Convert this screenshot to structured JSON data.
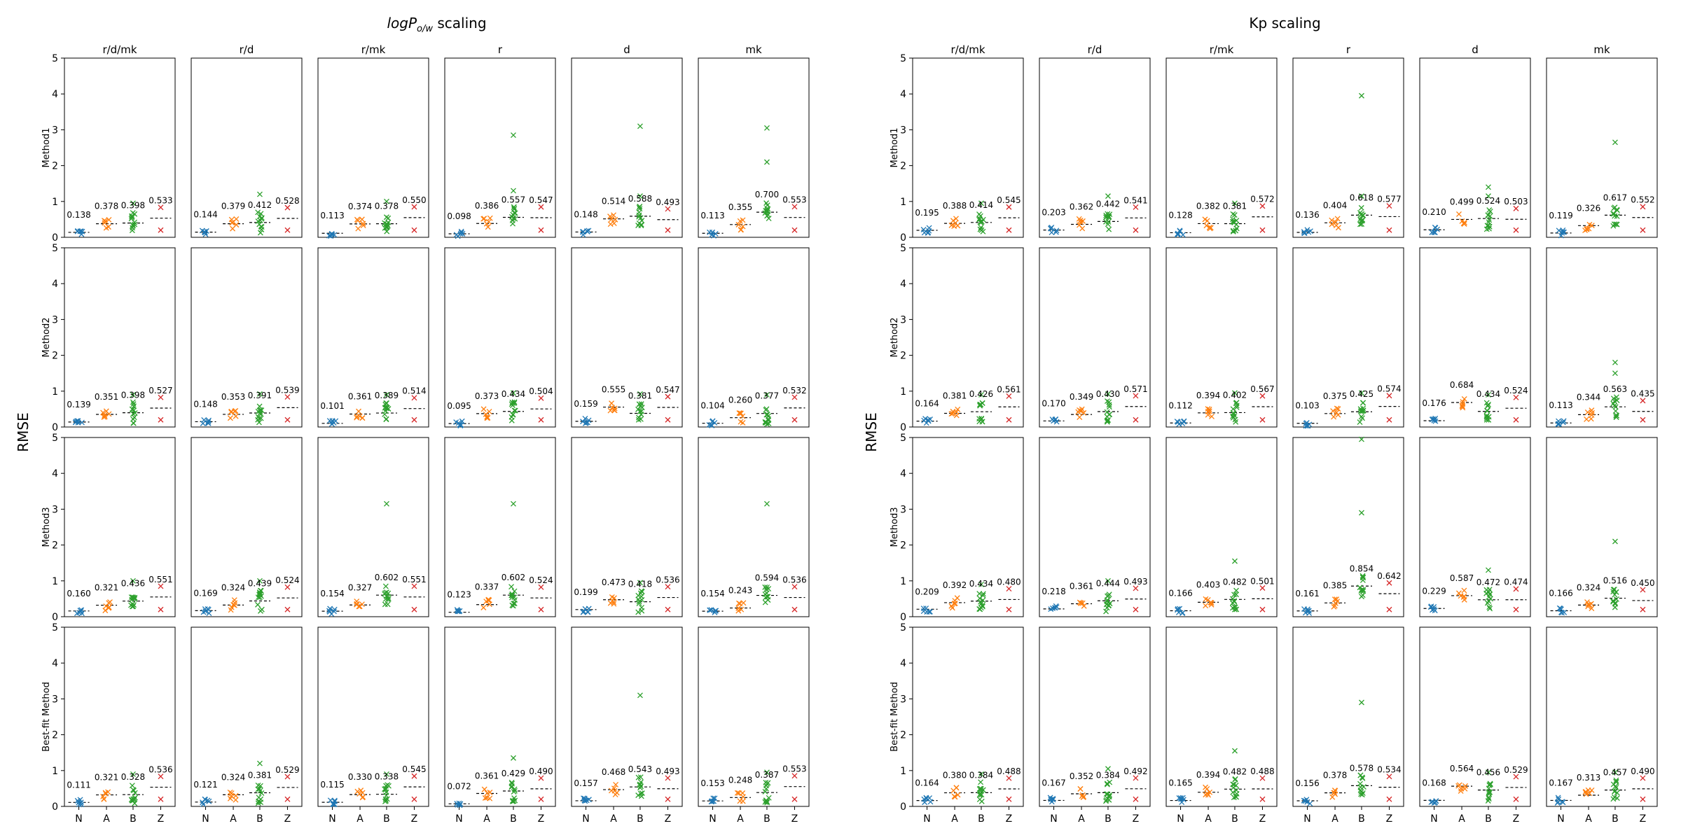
{
  "figure": {
    "panels": [
      {
        "title_pre": "logP",
        "title_sub": "o/w",
        "title_post": " scaling",
        "ylabel": "RMSE"
      },
      {
        "title_pre": "Kp scaling",
        "title_sub": "",
        "title_post": "",
        "ylabel": "RMSE"
      }
    ],
    "columns": [
      "r/d/mk",
      "r/d",
      "r/mk",
      "r",
      "d",
      "mk"
    ],
    "rows": [
      "Method1",
      "Method2",
      "Method3",
      "Best-fit Method"
    ],
    "categories": [
      "N",
      "A",
      "B",
      "Z"
    ],
    "yticks": [
      0,
      1,
      2,
      3,
      4,
      5
    ],
    "colors": {
      "N": "#1f77b4",
      "A": "#ff7f0e",
      "B": "#2ca02c",
      "Z": "#d62728"
    }
  },
  "chart_data": [
    {
      "type": "scatter",
      "title": "logPo/w scaling",
      "ylabel": "RMSE",
      "ylim": [
        0,
        5
      ],
      "yticks": [
        0,
        1,
        2,
        3,
        4,
        5
      ],
      "categories": [
        "N",
        "A",
        "B",
        "Z"
      ],
      "columns": [
        "r/d/mk",
        "r/d",
        "r/mk",
        "r",
        "d",
        "mk"
      ],
      "rows": [
        "Method1",
        "Method2",
        "Method3",
        "Best-fit Method"
      ],
      "mean_rmse": [
        [
          [
            "0.138",
            "0.378",
            "0.398",
            "0.533"
          ],
          [
            "0.144",
            "0.379",
            "0.412",
            "0.528"
          ],
          [
            "0.113",
            "0.374",
            "0.378",
            "0.550"
          ],
          [
            "0.098",
            "0.386",
            "0.557",
            "0.547"
          ],
          [
            "0.148",
            "0.514",
            "0.588",
            "0.493"
          ],
          [
            "0.113",
            "0.355",
            "0.700",
            "0.553"
          ]
        ],
        [
          [
            "0.139",
            "0.351",
            "0.398",
            "0.527"
          ],
          [
            "0.148",
            "0.353",
            "0.391",
            "0.539"
          ],
          [
            "0.101",
            "0.361",
            "0.389",
            "0.514"
          ],
          [
            "0.095",
            "0.373",
            "0.434",
            "0.504"
          ],
          [
            "0.159",
            "0.555",
            "0.381",
            "0.547"
          ],
          [
            "0.104",
            "0.260",
            "0.377",
            "0.532"
          ]
        ],
        [
          [
            "0.160",
            "0.321",
            "0.436",
            "0.551"
          ],
          [
            "0.169",
            "0.324",
            "0.439",
            "0.524"
          ],
          [
            "0.154",
            "0.327",
            "0.602",
            "0.551"
          ],
          [
            "0.123",
            "0.337",
            "0.602",
            "0.524"
          ],
          [
            "0.199",
            "0.473",
            "0.418",
            "0.536"
          ],
          [
            "0.154",
            "0.243",
            "0.594",
            "0.536"
          ]
        ],
        [
          [
            "0.111",
            "0.321",
            "0.328",
            "0.536"
          ],
          [
            "0.121",
            "0.324",
            "0.381",
            "0.529"
          ],
          [
            "0.115",
            "0.330",
            "0.338",
            "0.545"
          ],
          [
            "0.072",
            "0.361",
            "0.429",
            "0.490"
          ],
          [
            "0.157",
            "0.468",
            "0.543",
            "0.493"
          ],
          [
            "0.153",
            "0.248",
            "0.387",
            "0.553"
          ]
        ]
      ],
      "B_outliers": [
        [
          [
            0.95
          ],
          [
            1.2
          ],
          [
            1.0
          ],
          [
            2.85,
            1.3
          ],
          [
            3.1,
            1.15
          ],
          [
            3.05,
            2.1
          ]
        ],
        [
          [
            0.9
          ],
          [
            0.92
          ],
          [
            0.9
          ],
          [
            0.95
          ],
          [
            0.92
          ],
          [
            0.9
          ]
        ],
        [
          [
            1.0
          ],
          [
            1.0
          ],
          [
            3.15
          ],
          [
            3.15
          ],
          [
            0.95
          ],
          [
            3.15
          ]
        ],
        [
          [
            0.9
          ],
          [
            1.2
          ],
          [
            0.9
          ],
          [
            1.35
          ],
          [
            3.1
          ],
          [
            0.95
          ]
        ]
      ]
    },
    {
      "type": "scatter",
      "title": "Kp scaling",
      "ylabel": "RMSE",
      "ylim": [
        0,
        5
      ],
      "yticks": [
        0,
        1,
        2,
        3,
        4,
        5
      ],
      "categories": [
        "N",
        "A",
        "B",
        "Z"
      ],
      "columns": [
        "r/d/mk",
        "r/d",
        "r/mk",
        "r",
        "d",
        "mk"
      ],
      "rows": [
        "Method1",
        "Method2",
        "Method3",
        "Best-fit Method"
      ],
      "mean_rmse": [
        [
          [
            "0.195",
            "0.388",
            "0.414",
            "0.545"
          ],
          [
            "0.203",
            "0.362",
            "0.442",
            "0.541"
          ],
          [
            "0.128",
            "0.382",
            "0.381",
            "0.572"
          ],
          [
            "0.136",
            "0.404",
            "0.618",
            "0.577"
          ],
          [
            "0.210",
            "0.499",
            "0.524",
            "0.503"
          ],
          [
            "0.119",
            "0.326",
            "0.617",
            "0.552"
          ]
        ],
        [
          [
            "0.164",
            "0.381",
            "0.426",
            "0.561"
          ],
          [
            "0.170",
            "0.349",
            "0.430",
            "0.571"
          ],
          [
            "0.112",
            "0.394",
            "0.402",
            "0.567"
          ],
          [
            "0.103",
            "0.375",
            "0.425",
            "0.574"
          ],
          [
            "0.176",
            "0.684",
            "0.434",
            "0.524"
          ],
          [
            "0.113",
            "0.344",
            "0.563",
            "0.435"
          ]
        ],
        [
          [
            "0.209",
            "0.392",
            "0.434",
            "0.480"
          ],
          [
            "0.218",
            "0.361",
            "0.444",
            "0.493"
          ],
          [
            "0.166",
            "0.403",
            "0.482",
            "0.501"
          ],
          [
            "0.161",
            "0.385",
            "0.854",
            "0.642"
          ],
          [
            "0.229",
            "0.587",
            "0.472",
            "0.474"
          ],
          [
            "0.166",
            "0.324",
            "0.516",
            "0.450"
          ]
        ],
        [
          [
            "0.164",
            "0.380",
            "0.384",
            "0.488"
          ],
          [
            "0.167",
            "0.352",
            "0.384",
            "0.492"
          ],
          [
            "0.165",
            "0.394",
            "0.482",
            "0.488"
          ],
          [
            "0.156",
            "0.378",
            "0.578",
            "0.534"
          ],
          [
            "0.168",
            "0.564",
            "0.456",
            "0.529"
          ],
          [
            "0.167",
            "0.313",
            "0.457",
            "0.490"
          ]
        ]
      ],
      "B_outliers": [
        [
          [
            0.95
          ],
          [
            1.15
          ],
          [
            0.95
          ],
          [
            3.95,
            1.15
          ],
          [
            1.4,
            1.15
          ],
          [
            2.65
          ]
        ],
        [
          [
            0.9
          ],
          [
            0.92
          ],
          [
            0.95
          ],
          [
            0.95
          ],
          [
            0.9
          ],
          [
            1.8,
            1.5
          ]
        ],
        [
          [
            0.9
          ],
          [
            1.0
          ],
          [
            1.55
          ],
          [
            4.95,
            2.9
          ],
          [
            1.3
          ],
          [
            2.1
          ]
        ],
        [
          [
            0.9
          ],
          [
            1.05
          ],
          [
            1.55
          ],
          [
            2.9
          ],
          [
            0.95
          ],
          [
            0.95
          ]
        ]
      ]
    }
  ]
}
